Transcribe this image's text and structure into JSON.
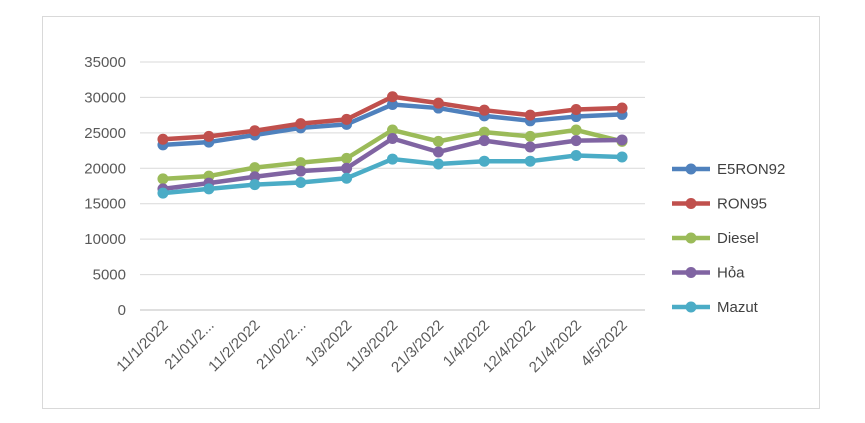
{
  "chart_data": {
    "type": "line",
    "title": "",
    "xlabel": "",
    "ylabel": "",
    "ylim": [
      0,
      35000
    ],
    "ytick_step": 5000,
    "grid": "horizontal",
    "legend_position": "right",
    "categories": [
      "11/1/2022",
      "21/01/2...",
      "11/2/2022",
      "21/02/2...",
      "1/3/2022",
      "11/3/2022",
      "21/3/2022",
      "1/4/2022",
      "12/4/2022",
      "21/4/2022",
      "4/5/2022"
    ],
    "series": [
      {
        "name": "E5RON92",
        "color": "#4f81bd",
        "values": [
          23300,
          23700,
          24700,
          25700,
          26200,
          29000,
          28500,
          27400,
          26700,
          27300,
          27600
        ]
      },
      {
        "name": "RON95",
        "color": "#c0504d",
        "values": [
          24100,
          24500,
          25300,
          26300,
          26900,
          30100,
          29200,
          28200,
          27500,
          28300,
          28500
        ]
      },
      {
        "name": "Diesel",
        "color": "#9bbb59",
        "values": [
          18500,
          18900,
          20100,
          20800,
          21400,
          25400,
          23800,
          25100,
          24500,
          25400,
          23800
        ]
      },
      {
        "name": "Hỏa",
        "color": "#8064a2",
        "values": [
          17100,
          17900,
          18800,
          19600,
          20000,
          24200,
          22300,
          23900,
          23000,
          23900,
          24000
        ]
      },
      {
        "name": "Mazut",
        "color": "#4bacc6",
        "values": [
          16500,
          17100,
          17700,
          18000,
          18600,
          21300,
          20600,
          21000,
          21000,
          21800,
          21600
        ]
      }
    ]
  }
}
